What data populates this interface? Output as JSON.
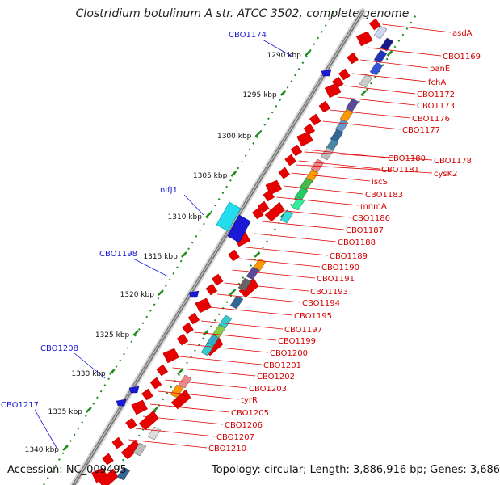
{
  "title": "Clostridium botulinum A str. ATCC 3502, complete genome",
  "accession": "Accession: NC_009495",
  "topology": "Topology: circular; Length: 3,886,916 bp; Genes: 3,686",
  "colors": {
    "forward_genes": "#1a1ad4",
    "reverse_genes": "#d40000",
    "tick_green": "#1e8c1e",
    "backbone": "#777777"
  },
  "ticks": [
    "1290 kbp",
    "1295 kbp",
    "1300 kbp",
    "1305 kbp",
    "1310 kbp",
    "1315 kbp",
    "1320 kbp",
    "1325 kbp",
    "1330 kbp",
    "1335 kbp",
    "1340 kbp"
  ],
  "forward_labels": [
    "CBO1174",
    "nifJ1",
    "CBO1198",
    "CBO1208",
    "CBO1217"
  ],
  "reverse_labels": [
    "asdA",
    "CBO1169",
    "panE",
    "fchA",
    "CBO1172",
    "CBO1173",
    "CBO1176",
    "CBO1177",
    "CBO1178",
    "CBO1180",
    "cysK2",
    "CBO1181",
    "iscS",
    "CBO1183",
    "mnmA",
    "CBO1186",
    "CBO1187",
    "CBO1188",
    "CBO1189",
    "CBO1190",
    "CBO1191",
    "CBO1193",
    "CBO1194",
    "CBO1195",
    "CBO1197",
    "CBO1199",
    "CBO1200",
    "CBO1201",
    "CBO1202",
    "CBO1203",
    "tyrR",
    "CBO1205",
    "CBO1206",
    "CBO1207",
    "CBO1210"
  ]
}
